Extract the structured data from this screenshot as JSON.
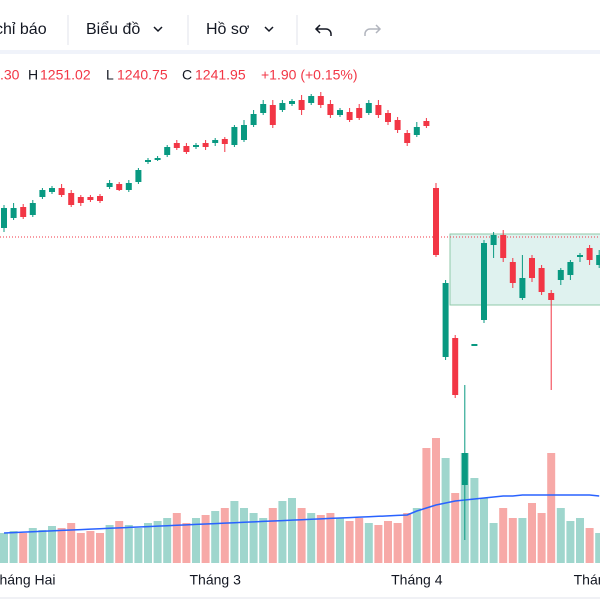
{
  "toolbar": {
    "indicators": "chỉ báo",
    "chart": "Biểu đồ",
    "profile": "Hồ sơ"
  },
  "legend": {
    "open": ".30",
    "high_label": "H",
    "high": "1251.02",
    "low_label": "L",
    "low": "1240.75",
    "close_label": "C",
    "close": "1241.95",
    "change": "+1.90 (+0.15%)"
  },
  "chart_data": {
    "type": "candlestick",
    "categories": [
      null,
      null,
      "Tháng Hai",
      null,
      null,
      null,
      null,
      null,
      null,
      null,
      null,
      null,
      null,
      null,
      null,
      null,
      null,
      null,
      null,
      null,
      null,
      null,
      "Tháng 3",
      null,
      null,
      null,
      null,
      null,
      null,
      null,
      null,
      null,
      null,
      null,
      null,
      null,
      null,
      null,
      null,
      null,
      null,
      null,
      null,
      "Tháng 4",
      null,
      null,
      null,
      null,
      null,
      null,
      null,
      null,
      null,
      null,
      null,
      null,
      null,
      null,
      null,
      null,
      null,
      "Thán",
      null
    ],
    "open": [
      1222,
      1232,
      1243,
      1235,
      1253,
      1258,
      1262,
      1257,
      1253,
      1253,
      1254,
      1263,
      1266,
      1260,
      1268,
      1288,
      1290,
      1295,
      1307,
      1304,
      1303,
      1307,
      1307,
      1311,
      1305,
      1310,
      1325,
      1337,
      1345,
      1340,
      1346,
      1350,
      1347,
      1354,
      1346,
      1335,
      1338,
      1342,
      1337,
      1345,
      1337,
      1330,
      1317,
      1315,
      1329,
      1262,
      1093,
      1112,
      965,
      1104,
      1130,
      1205,
      1215,
      1188,
      1152,
      1192,
      1182,
      1157,
      1170,
      1175,
      1193,
      1202,
      1185
    ],
    "high": [
      1245,
      1247,
      1246,
      1250,
      1262,
      1264,
      1266,
      1260,
      1255,
      1255,
      1256,
      1270,
      1268,
      1270,
      1282,
      1292,
      1294,
      1305,
      1310,
      1307,
      1307,
      1310,
      1312,
      1313,
      1325,
      1330,
      1340,
      1350,
      1350,
      1350,
      1351,
      1355,
      1356,
      1358,
      1350,
      1342,
      1342,
      1346,
      1350,
      1350,
      1340,
      1333,
      1320,
      1328,
      1332,
      1267,
      1170,
      1115,
      1065,
      1106,
      1210,
      1218,
      1220,
      1192,
      1195,
      1195,
      1185,
      1160,
      1182,
      1190,
      1197,
      1205,
      1200
    ],
    "low": [
      1218,
      1230,
      1231,
      1233,
      1251,
      1256,
      1253,
      1243,
      1244,
      1248,
      1247,
      1261,
      1259,
      1258,
      1266,
      1286,
      1289,
      1293,
      1300,
      1296,
      1301,
      1300,
      1304,
      1298,
      1303,
      1308,
      1323,
      1335,
      1322,
      1338,
      1344,
      1335,
      1345,
      1342,
      1332,
      1333,
      1328,
      1330,
      1335,
      1332,
      1325,
      1317,
      1304,
      1313,
      1322,
      1193,
      1090,
      1052,
      910,
      1104,
      1127,
      1192,
      1188,
      1162,
      1150,
      1168,
      1155,
      1060,
      1165,
      1170,
      1188,
      1185,
      1182
    ],
    "close": [
      1242,
      1242,
      1233,
      1247,
      1260,
      1262,
      1255,
      1245,
      1247,
      1250,
      1249,
      1267,
      1260,
      1267,
      1280,
      1290,
      1292,
      1303,
      1302,
      1298,
      1305,
      1303,
      1310,
      1306,
      1323,
      1325,
      1336,
      1346,
      1325,
      1347,
      1349,
      1340,
      1354,
      1345,
      1335,
      1340,
      1330,
      1332,
      1347,
      1335,
      1328,
      1320,
      1307,
      1323,
      1324,
      1195,
      1167,
      1055,
      997,
      1106,
      1207,
      1215,
      1192,
      1167,
      1172,
      1172,
      1158,
      1150,
      1180,
      1188,
      1195,
      1190,
      1195
    ],
    "volume": [
      30,
      32,
      30,
      35,
      33,
      37,
      35,
      40,
      30,
      32,
      30,
      38,
      42,
      38,
      35,
      40,
      42,
      45,
      50,
      40,
      45,
      48,
      52,
      55,
      62,
      55,
      50,
      45,
      55,
      62,
      65,
      55,
      50,
      48,
      50,
      45,
      42,
      45,
      40,
      38,
      42,
      40,
      50,
      55,
      115,
      125,
      105,
      70,
      110,
      85,
      65,
      40,
      55,
      45,
      45,
      60,
      50,
      110,
      55,
      42,
      45,
      35,
      30
    ],
    "volume_ma": [
      30,
      30.4,
      30.9,
      31.3,
      31.7,
      32.1,
      32.6,
      33,
      33.4,
      33.9,
      34.3,
      34.7,
      35.1,
      35.6,
      36,
      36.4,
      36.9,
      37.3,
      37.7,
      38.1,
      38.6,
      39,
      39.4,
      39.9,
      40.3,
      40.7,
      41.1,
      41.6,
      42,
      42.4,
      42.9,
      43.3,
      43.7,
      44.1,
      44.6,
      45,
      45.4,
      45.9,
      46.3,
      46.7,
      47.1,
      47.6,
      48,
      52,
      55,
      58,
      60,
      62,
      63,
      64,
      65,
      66,
      67,
      67,
      68,
      68,
      68,
      68,
      68,
      68,
      68,
      68,
      67
    ],
    "ylim": [
      887,
      1395
    ],
    "volume_ylim": [
      0,
      508
    ],
    "price_line": 1213,
    "up_color": "#089981",
    "down_color": "#f23645",
    "up_volume_color": "#9fd6cd",
    "down_volume_color": "#f7a9a7",
    "ma_color": "#2962ff"
  }
}
